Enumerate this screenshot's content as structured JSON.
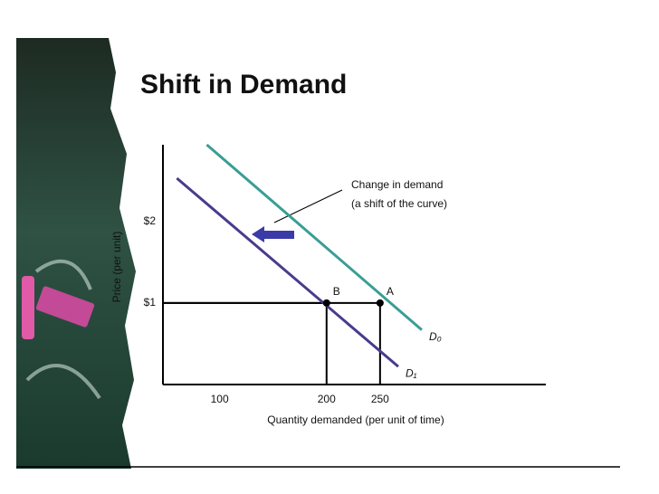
{
  "chart_data": {
    "type": "line",
    "title": "Shift in Demand",
    "xlabel": "Quantity demanded (per unit of time)",
    "ylabel": "Price (per unit)",
    "xlim": [
      47,
      405
    ],
    "ylim": [
      0,
      2.94
    ],
    "xticks": [
      100,
      200,
      250
    ],
    "yticks": [
      {
        "value": 1,
        "label": "$1"
      },
      {
        "value": 2,
        "label": "$2"
      }
    ],
    "series": [
      {
        "name": "D₀",
        "color": "#3a9e95",
        "x": [
          88,
          289
        ],
        "values": [
          2.94,
          0.67
        ]
      },
      {
        "name": "D₁",
        "color": "#4a3b8c",
        "x": [
          60,
          267
        ],
        "values": [
          2.53,
          0.22
        ]
      }
    ],
    "points": [
      {
        "label": "A",
        "x": 250,
        "y": 1
      },
      {
        "label": "B",
        "x": 200,
        "y": 1
      }
    ],
    "annotation": [
      "Change in demand",
      "(a shift of the curve)"
    ]
  }
}
